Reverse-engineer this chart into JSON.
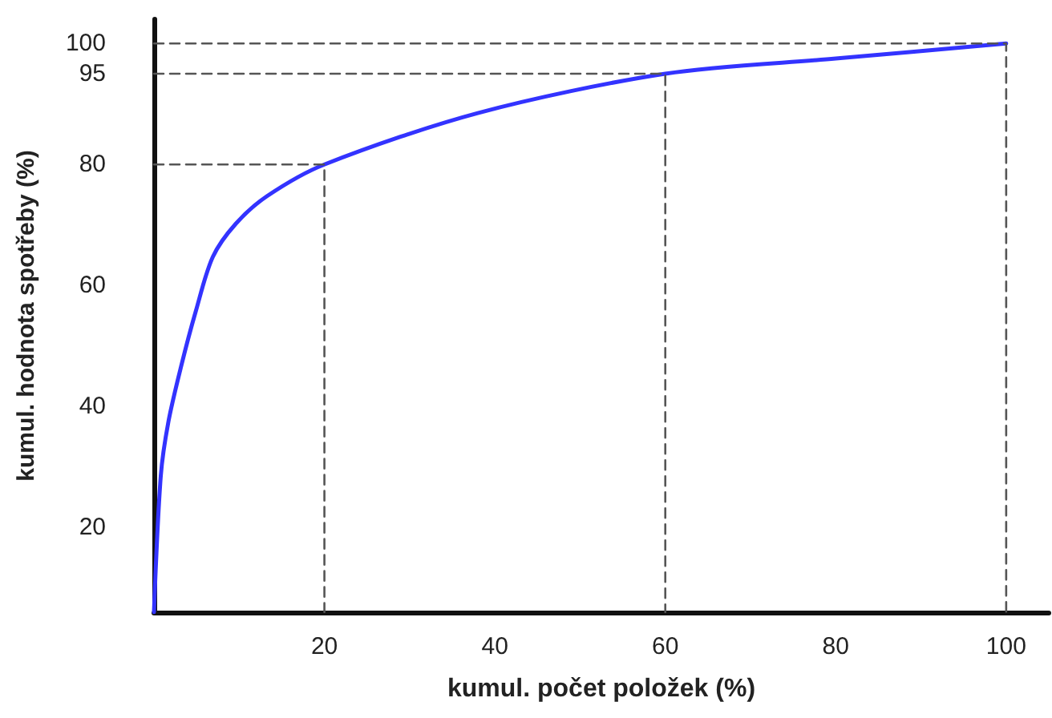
{
  "chart_data": {
    "type": "line",
    "xlabel": "kumul. počet položek (%)",
    "ylabel": "kumul. hodnota spotřeby (%)",
    "xlim": [
      0,
      105
    ],
    "xticks": [
      20,
      40,
      60,
      80,
      100
    ],
    "ylim": [
      6,
      104
    ],
    "yticks": [
      20,
      40,
      60,
      80,
      95,
      100
    ],
    "grid": false,
    "marker": "none",
    "series": [
      {
        "color": "#3333ff",
        "line_style": "solid",
        "x": [
          0,
          0.8,
          1.7,
          3.2,
          4.9,
          6.9,
          9.6,
          13.3,
          20,
          38,
          60,
          80,
          100
        ],
        "values": [
          6,
          28.5,
          37.5,
          46.7,
          55.7,
          64.7,
          70.2,
          74.8,
          80,
          88.5,
          95,
          97.5,
          100
        ]
      },
      {
        "color": "#555555",
        "line_style": "dashed",
        "x": [
          0,
          20,
          20
        ],
        "values": [
          80,
          80,
          6
        ]
      },
      {
        "color": "#555555",
        "line_style": "dashed",
        "x": [
          0,
          60,
          60
        ],
        "values": [
          95,
          95,
          6
        ]
      },
      {
        "color": "#555555",
        "line_style": "dashed",
        "x": [
          0,
          100,
          100
        ],
        "values": [
          100,
          100,
          6
        ]
      }
    ]
  }
}
